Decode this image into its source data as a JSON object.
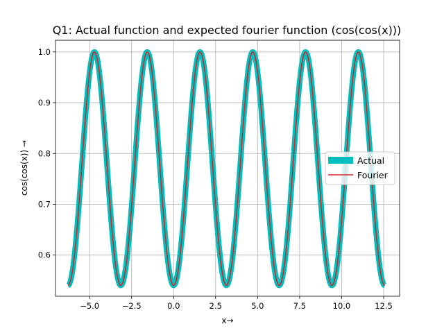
{
  "chart_data": {
    "type": "line",
    "title": "Q1: Actual function and expected fourier function (cos(cos(x)))",
    "xlabel": "x→",
    "ylabel": "cos(cos(x)) →",
    "xlim": [
      -7.03,
      13.45
    ],
    "ylim": [
      0.519,
      1.023
    ],
    "x_range": [
      -6.2832,
      12.5664
    ],
    "xticks": [
      -5.0,
      -2.5,
      0.0,
      2.5,
      5.0,
      7.5,
      10.0,
      12.5
    ],
    "xtick_labels": [
      "−5.0",
      "−2.5",
      "0.0",
      "2.5",
      "5.0",
      "7.5",
      "10.0",
      "12.5"
    ],
    "yticks": [
      0.6,
      0.7,
      0.8,
      0.9,
      1.0
    ],
    "ytick_labels": [
      "0.6",
      "0.7",
      "0.8",
      "0.9",
      "1.0"
    ],
    "grid": true,
    "legend_position": "center-right",
    "series": [
      {
        "name": "Actual",
        "color": "#00bfbf",
        "function": "cos(cos(x))",
        "y_min": 0.5403,
        "y_max": 1.0
      },
      {
        "name": "Fourier",
        "color": "#d62728",
        "function": "cos(cos(x))",
        "y_min": 0.5403,
        "y_max": 1.0
      }
    ]
  }
}
